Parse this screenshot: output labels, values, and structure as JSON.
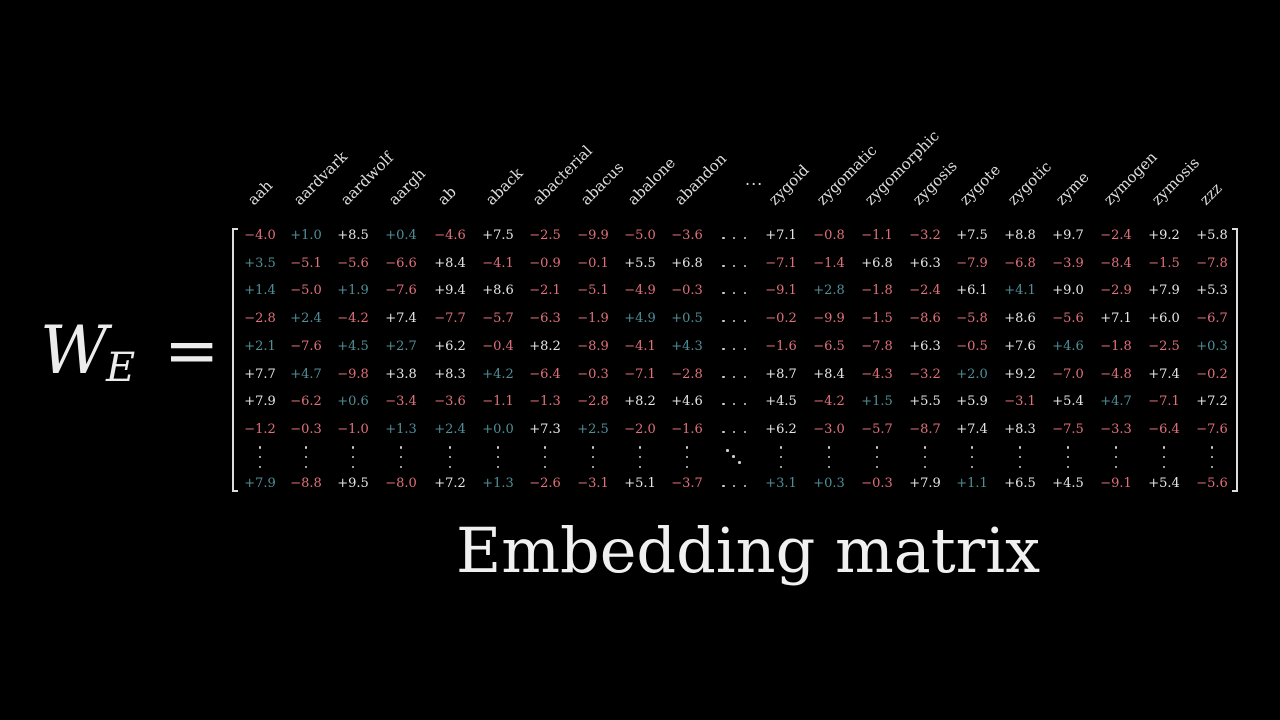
{
  "equation": {
    "symbol": "W",
    "subscript": "E",
    "equals": "="
  },
  "caption": "Embedding matrix",
  "colors": {
    "positive_bright": "#e6e6e6",
    "positive_teal": "#4f8f98",
    "negative": "#e0707a"
  },
  "columns": {
    "left_words": [
      "aah",
      "aardvark",
      "aardwolf",
      "aargh",
      "ab",
      "aback",
      "abacterial",
      "abacus",
      "abalone",
      "abandon"
    ],
    "right_words": [
      "zygoid",
      "zygomatic",
      "zygomorphic",
      "zygosis",
      "zygote",
      "zygotic",
      "zyme",
      "zymogen",
      "zymosis",
      "zzz"
    ],
    "ellipsis": "..."
  },
  "rows": [
    {
      "left": [
        "−4.0",
        "+1.0",
        "+8.5",
        "+0.4",
        "−4.6",
        "+7.5",
        "−2.5",
        "−9.9",
        "−5.0",
        "−3.6"
      ],
      "right": [
        "+7.1",
        "−0.8",
        "−1.1",
        "−3.2",
        "+7.5",
        "+8.8",
        "+9.7",
        "−2.4",
        "+9.2",
        "+5.8"
      ]
    },
    {
      "left": [
        "+3.5",
        "−5.1",
        "−5.6",
        "−6.6",
        "+8.4",
        "−4.1",
        "−0.9",
        "−0.1",
        "+5.5",
        "+6.8"
      ],
      "right": [
        "−7.1",
        "−1.4",
        "+6.8",
        "+6.3",
        "−7.9",
        "−6.8",
        "−3.9",
        "−8.4",
        "−1.5",
        "−7.8"
      ]
    },
    {
      "left": [
        "+1.4",
        "−5.0",
        "+1.9",
        "−7.6",
        "+9.4",
        "+8.6",
        "−2.1",
        "−5.1",
        "−4.9",
        "−0.3"
      ],
      "right": [
        "−9.1",
        "+2.8",
        "−1.8",
        "−2.4",
        "+6.1",
        "+4.1",
        "+9.0",
        "−2.9",
        "+7.9",
        "+5.3"
      ]
    },
    {
      "left": [
        "−2.8",
        "+2.4",
        "−4.2",
        "+7.4",
        "−7.7",
        "−5.7",
        "−6.3",
        "−1.9",
        "+4.9",
        "+0.5"
      ],
      "right": [
        "−0.2",
        "−9.9",
        "−1.5",
        "−8.6",
        "−5.8",
        "+8.6",
        "−5.6",
        "+7.1",
        "+6.0",
        "−6.7"
      ]
    },
    {
      "left": [
        "+2.1",
        "−7.6",
        "+4.5",
        "+2.7",
        "+6.2",
        "−0.4",
        "+8.2",
        "−8.9",
        "−4.1",
        "+4.3"
      ],
      "right": [
        "−1.6",
        "−6.5",
        "−7.8",
        "+6.3",
        "−0.5",
        "+7.6",
        "+4.6",
        "−1.8",
        "−2.5",
        "+0.3"
      ]
    },
    {
      "left": [
        "+7.7",
        "+4.7",
        "−9.8",
        "+3.8",
        "+8.3",
        "+4.2",
        "−6.4",
        "−0.3",
        "−7.1",
        "−2.8"
      ],
      "right": [
        "+8.7",
        "+8.4",
        "−4.3",
        "−3.2",
        "+2.0",
        "+9.2",
        "−7.0",
        "−4.8",
        "+7.4",
        "−0.2"
      ]
    },
    {
      "left": [
        "+7.9",
        "−6.2",
        "+0.6",
        "−3.4",
        "−3.6",
        "−1.1",
        "−1.3",
        "−2.8",
        "+8.2",
        "+4.6"
      ],
      "right": [
        "+4.5",
        "−4.2",
        "+1.5",
        "+5.5",
        "+5.9",
        "−3.1",
        "+5.4",
        "+4.7",
        "−7.1",
        "+7.2"
      ]
    },
    {
      "left": [
        "−1.2",
        "−0.3",
        "−1.0",
        "+1.3",
        "+2.4",
        "+0.0",
        "+7.3",
        "+2.5",
        "−2.0",
        "−1.6"
      ],
      "right": [
        "+6.2",
        "−3.0",
        "−5.7",
        "−8.7",
        "+7.4",
        "+8.3",
        "−7.5",
        "−3.3",
        "−6.4",
        "−7.6"
      ]
    },
    {
      "left": [
        "+7.9",
        "−8.8",
        "+9.5",
        "−8.0",
        "+7.2",
        "+1.3",
        "−2.6",
        "−3.1",
        "+5.1",
        "−3.7"
      ],
      "right": [
        "+3.1",
        "+0.3",
        "−0.3",
        "+7.9",
        "+1.1",
        "+6.5",
        "+4.5",
        "−9.1",
        "+5.4",
        "−5.6"
      ]
    }
  ],
  "cell_colors": [
    [
      "n",
      "t",
      "b",
      "t",
      "n",
      "b",
      "n",
      "n",
      "n",
      "n",
      "b",
      "n",
      "n",
      "n",
      "b",
      "b",
      "b",
      "n",
      "b",
      "b"
    ],
    [
      "t",
      "n",
      "n",
      "n",
      "b",
      "n",
      "n",
      "n",
      "b",
      "b",
      "n",
      "n",
      "b",
      "b",
      "n",
      "n",
      "n",
      "n",
      "n",
      "n"
    ],
    [
      "t",
      "n",
      "t",
      "n",
      "b",
      "b",
      "n",
      "n",
      "n",
      "n",
      "n",
      "t",
      "n",
      "n",
      "b",
      "t",
      "b",
      "n",
      "b",
      "b"
    ],
    [
      "n",
      "t",
      "n",
      "b",
      "n",
      "n",
      "n",
      "n",
      "t",
      "t",
      "n",
      "n",
      "n",
      "n",
      "n",
      "b",
      "n",
      "b",
      "b",
      "n"
    ],
    [
      "t",
      "n",
      "t",
      "t",
      "b",
      "n",
      "b",
      "n",
      "n",
      "t",
      "n",
      "n",
      "n",
      "b",
      "n",
      "b",
      "t",
      "n",
      "n",
      "t"
    ],
    [
      "b",
      "t",
      "n",
      "b",
      "b",
      "t",
      "n",
      "n",
      "n",
      "n",
      "b",
      "b",
      "n",
      "n",
      "t",
      "b",
      "n",
      "n",
      "b",
      "n"
    ],
    [
      "b",
      "n",
      "t",
      "n",
      "n",
      "n",
      "n",
      "n",
      "b",
      "b",
      "b",
      "n",
      "t",
      "b",
      "b",
      "n",
      "b",
      "t",
      "n",
      "b"
    ],
    [
      "n",
      "n",
      "n",
      "t",
      "t",
      "t",
      "b",
      "t",
      "n",
      "n",
      "b",
      "n",
      "n",
      "n",
      "b",
      "b",
      "n",
      "n",
      "n",
      "n"
    ],
    [
      "t",
      "n",
      "b",
      "n",
      "b",
      "t",
      "n",
      "n",
      "b",
      "n",
      "t",
      "t",
      "n",
      "b",
      "t",
      "b",
      "b",
      "n",
      "b",
      "n"
    ]
  ]
}
